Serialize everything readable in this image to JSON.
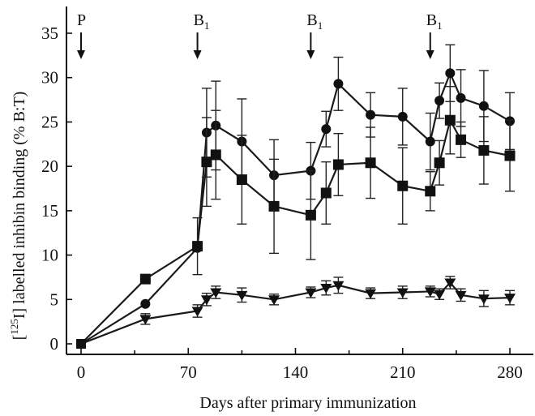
{
  "chart_data": {
    "type": "line",
    "xlabel": "Days after primary immunization",
    "ylabel_prefix": "[",
    "ylabel_sup": "125",
    "ylabel_suffix": "I] labelled inhibin binding (% B:T)",
    "xlim": [
      0,
      280
    ],
    "ylim": [
      0,
      35
    ],
    "xticks": [
      0,
      70,
      140,
      210,
      280
    ],
    "yticks": [
      0,
      5,
      10,
      15,
      20,
      25,
      30,
      35
    ],
    "annotations": [
      {
        "text": "P",
        "sub": "",
        "x": 0
      },
      {
        "text": "B",
        "sub": "1",
        "x": 76
      },
      {
        "text": "B",
        "sub": "1",
        "x": 150
      },
      {
        "text": "B",
        "sub": "1",
        "x": 228
      }
    ],
    "series": [
      {
        "marker": "circle",
        "points": [
          {
            "x": 0,
            "y": 0,
            "err": 0
          },
          {
            "x": 42,
            "y": 4.5,
            "err": 0
          },
          {
            "x": 76,
            "y": 10.8,
            "err": 0
          },
          {
            "x": 82,
            "y": 23.8,
            "err": 5
          },
          {
            "x": 88,
            "y": 24.6,
            "err": 5
          },
          {
            "x": 105,
            "y": 22.8,
            "err": 4.8
          },
          {
            "x": 126,
            "y": 19,
            "err": 4
          },
          {
            "x": 150,
            "y": 19.5,
            "err": 3.2
          },
          {
            "x": 160,
            "y": 24.2,
            "err": 2
          },
          {
            "x": 168,
            "y": 29.3,
            "err": 3
          },
          {
            "x": 189,
            "y": 25.8,
            "err": 2.5
          },
          {
            "x": 210,
            "y": 25.6,
            "err": 3.2
          },
          {
            "x": 228,
            "y": 22.8,
            "err": 3.2
          },
          {
            "x": 234,
            "y": 27.4,
            "err": 2
          },
          {
            "x": 241,
            "y": 30.5,
            "err": 3.2
          },
          {
            "x": 248,
            "y": 27.7,
            "err": 3.2
          },
          {
            "x": 263,
            "y": 26.8,
            "err": 4
          },
          {
            "x": 280,
            "y": 25.1,
            "err": 3.2
          }
        ]
      },
      {
        "marker": "square",
        "points": [
          {
            "x": 0,
            "y": 0,
            "err": 0
          },
          {
            "x": 42,
            "y": 7.3,
            "err": 0
          },
          {
            "x": 76,
            "y": 11,
            "err": 3.2
          },
          {
            "x": 82,
            "y": 20.5,
            "err": 5
          },
          {
            "x": 88,
            "y": 21.3,
            "err": 5
          },
          {
            "x": 105,
            "y": 18.5,
            "err": 5
          },
          {
            "x": 126,
            "y": 15.5,
            "err": 5.3
          },
          {
            "x": 150,
            "y": 14.5,
            "err": 5
          },
          {
            "x": 160,
            "y": 17,
            "err": 3.5
          },
          {
            "x": 168,
            "y": 20.2,
            "err": 3.5
          },
          {
            "x": 189,
            "y": 20.4,
            "err": 4
          },
          {
            "x": 210,
            "y": 17.8,
            "err": 4.3
          },
          {
            "x": 228,
            "y": 17.2,
            "err": 2.2
          },
          {
            "x": 234,
            "y": 20.4,
            "err": 2.5
          },
          {
            "x": 241,
            "y": 25.2,
            "err": 3.8
          },
          {
            "x": 248,
            "y": 23,
            "err": 2
          },
          {
            "x": 263,
            "y": 21.8,
            "err": 3.8
          },
          {
            "x": 280,
            "y": 21.2,
            "err": 4
          }
        ]
      },
      {
        "marker": "triangle-down",
        "points": [
          {
            "x": 0,
            "y": 0,
            "err": 0
          },
          {
            "x": 42,
            "y": 2.8,
            "err": 0.6
          },
          {
            "x": 76,
            "y": 3.7,
            "err": 0.7
          },
          {
            "x": 82,
            "y": 5,
            "err": 0.7
          },
          {
            "x": 88,
            "y": 5.8,
            "err": 0.7
          },
          {
            "x": 105,
            "y": 5.5,
            "err": 0.8
          },
          {
            "x": 126,
            "y": 5,
            "err": 0.6
          },
          {
            "x": 150,
            "y": 5.8,
            "err": 0.6
          },
          {
            "x": 160,
            "y": 6.3,
            "err": 0.8
          },
          {
            "x": 168,
            "y": 6.6,
            "err": 0.9
          },
          {
            "x": 189,
            "y": 5.7,
            "err": 0.6
          },
          {
            "x": 210,
            "y": 5.8,
            "err": 0.7
          },
          {
            "x": 228,
            "y": 5.9,
            "err": 0.6
          },
          {
            "x": 234,
            "y": 5.6,
            "err": 0.6
          },
          {
            "x": 241,
            "y": 6.9,
            "err": 0.7
          },
          {
            "x": 248,
            "y": 5.5,
            "err": 0.7
          },
          {
            "x": 263,
            "y": 5.1,
            "err": 0.9
          },
          {
            "x": 280,
            "y": 5.2,
            "err": 0.8
          }
        ]
      }
    ]
  }
}
